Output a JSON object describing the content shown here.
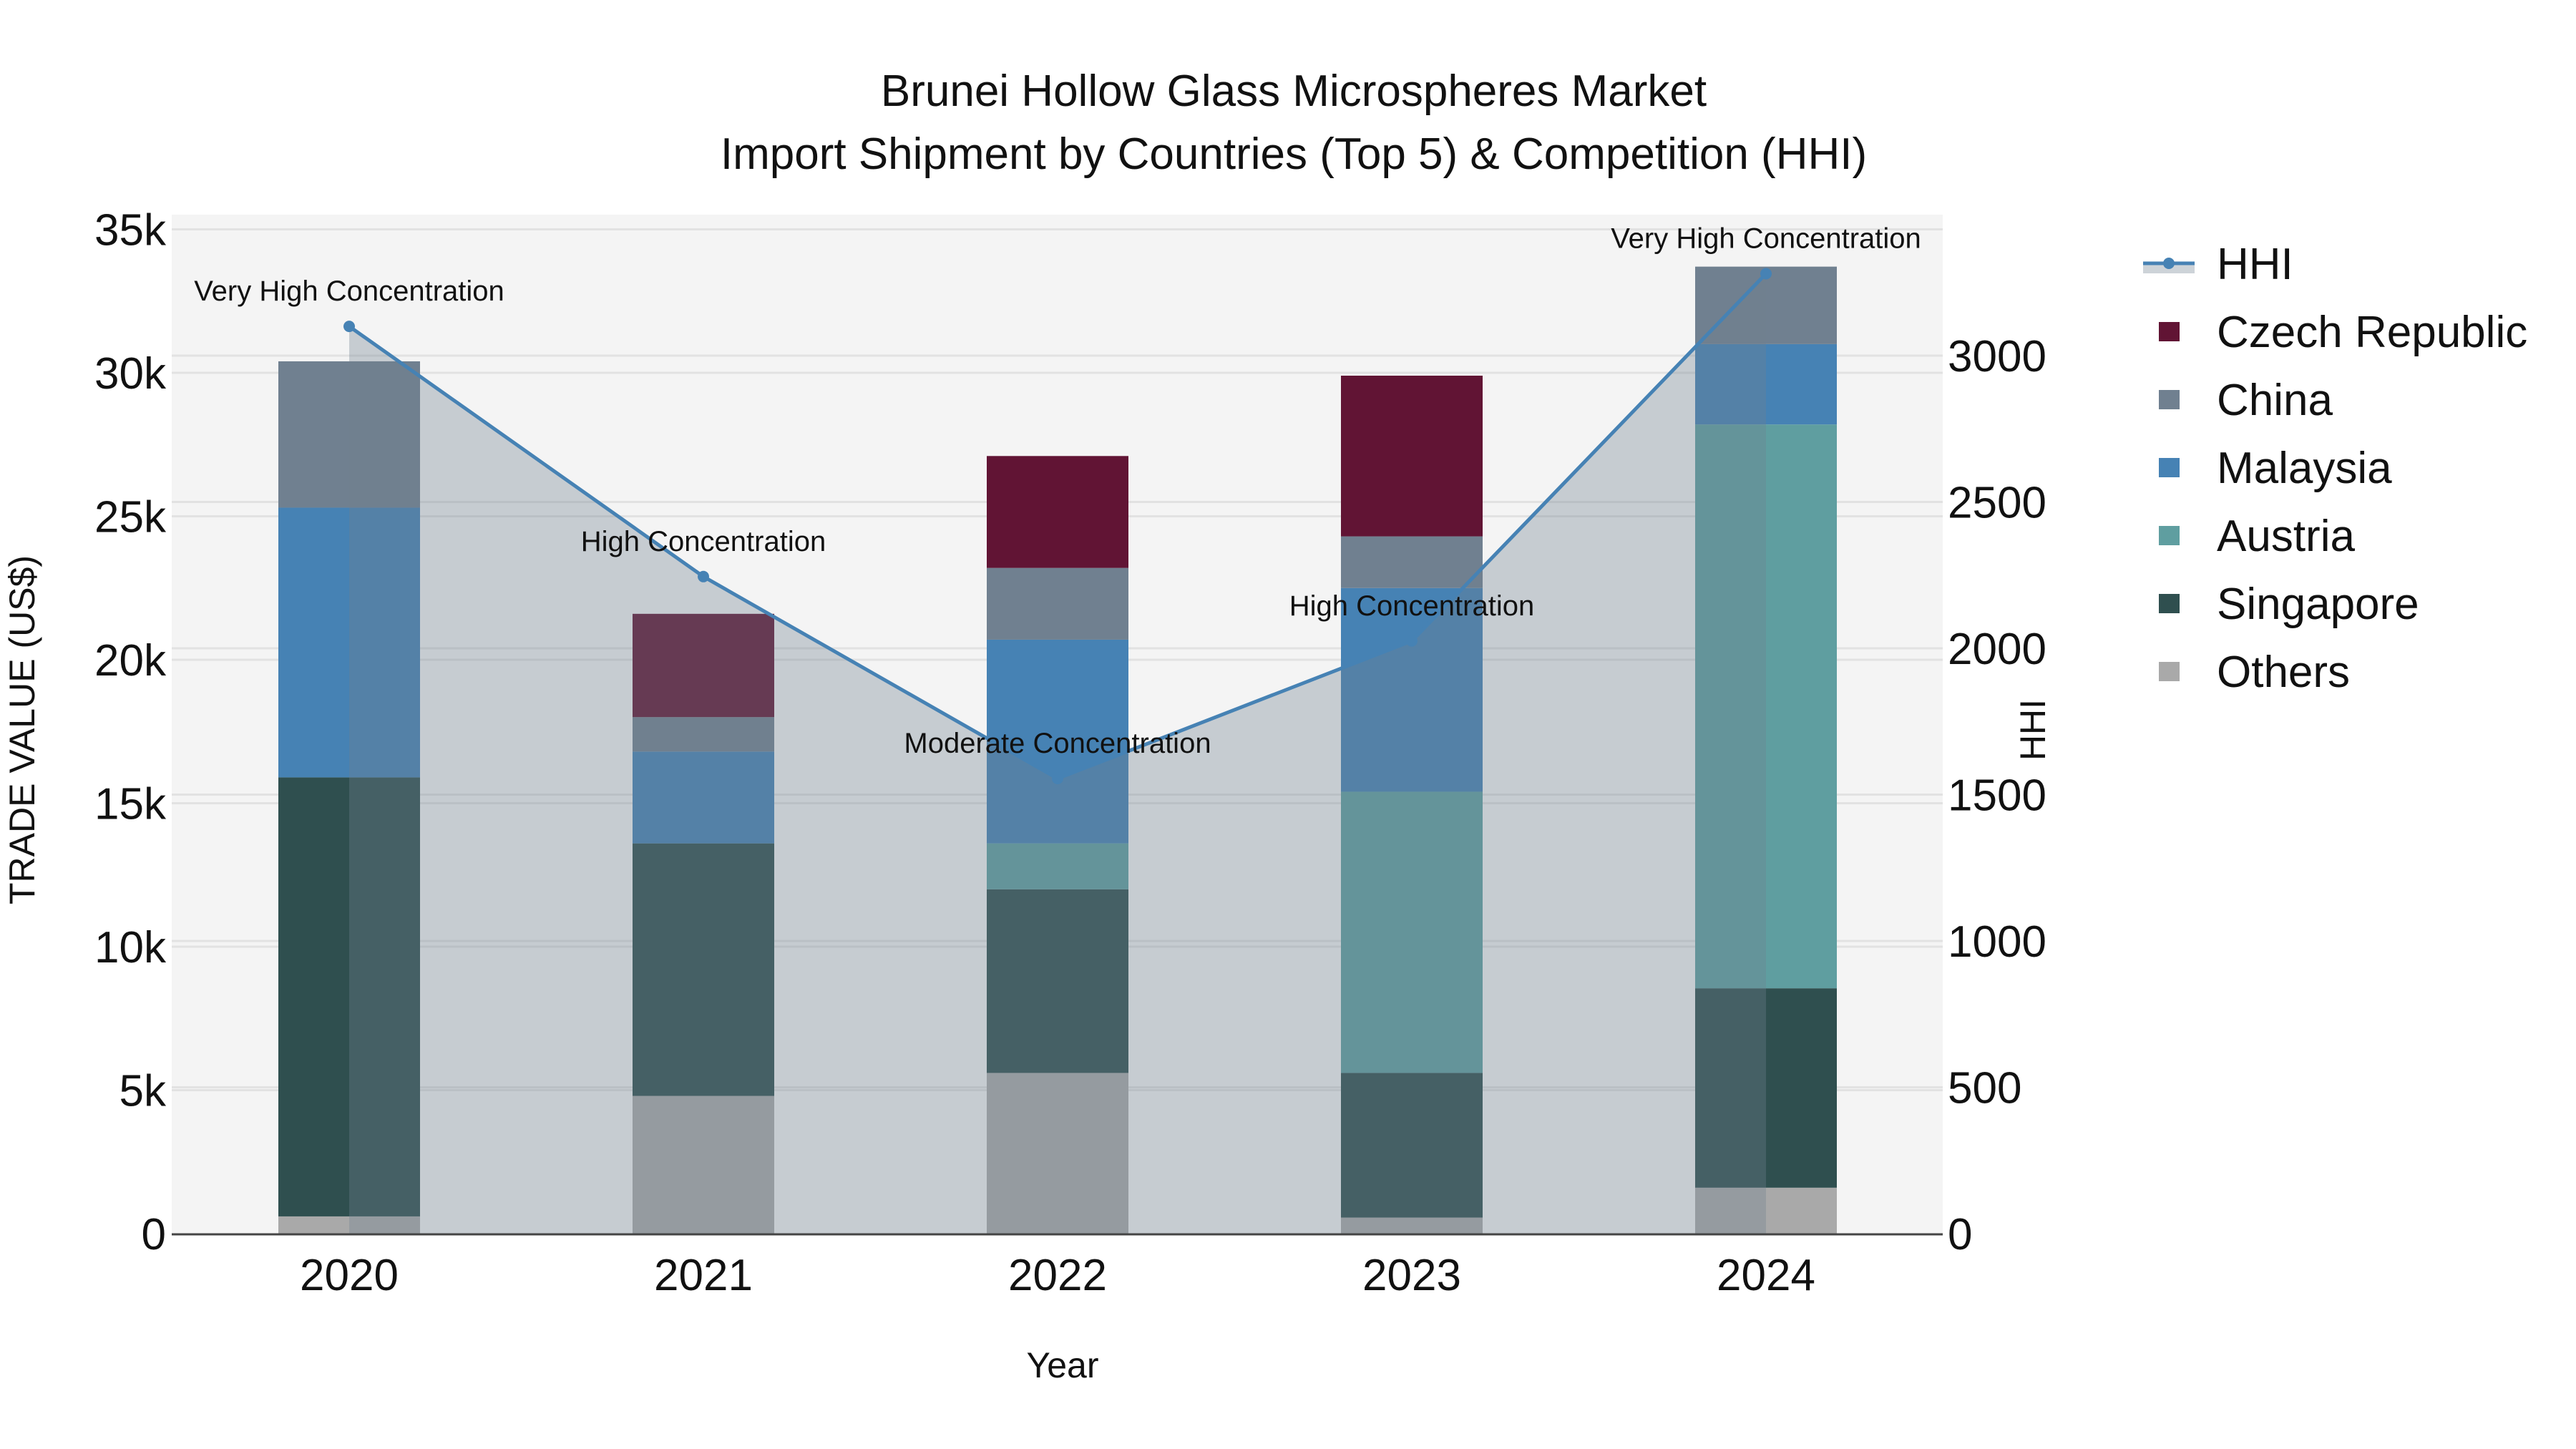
{
  "title": {
    "line1": "Brunei Hollow Glass Microspheres Market",
    "line2": "Import Shipment by Countries (Top 5) & Competition (HHI)"
  },
  "axes": {
    "x_title": "Year",
    "y_left_title": "TRADE VALUE (US$)",
    "y_right_title": "HHI",
    "y_left_ticks": [
      "0",
      "5k",
      "10k",
      "15k",
      "20k",
      "25k",
      "30k",
      "35k"
    ],
    "y_right_ticks": [
      "0",
      "500",
      "1000",
      "1500",
      "2000",
      "2500",
      "3000"
    ]
  },
  "legend": {
    "items": [
      {
        "label": "HHI",
        "type": "line",
        "color": "#4682B4"
      },
      {
        "label": "Czech Republic",
        "type": "box",
        "color": "#611434"
      },
      {
        "label": "China",
        "type": "box",
        "color": "#708090"
      },
      {
        "label": "Malaysia",
        "type": "box",
        "color": "#4682B4"
      },
      {
        "label": "Austria",
        "type": "box",
        "color": "#5F9EA0"
      },
      {
        "label": "Singapore",
        "type": "box",
        "color": "#2F4F4F"
      },
      {
        "label": "Others",
        "type": "box",
        "color": "#A9A9A9"
      }
    ]
  },
  "colors": {
    "plot_bg": "#F4F4F4",
    "grid": "#E2E2E2",
    "hhi_line": "#4682B4",
    "hhi_fill": "rgba(112,128,144,0.35)",
    "axis_line": "#444444"
  },
  "chart_data": {
    "type": "bar",
    "stacked": true,
    "title": "Brunei Hollow Glass Microspheres Market — Import Shipment by Countries (Top 5) & Competition (HHI)",
    "xlabel": "Year",
    "ylabel": "TRADE VALUE (US$)",
    "y2label": "HHI",
    "ylim": [
      0,
      35000
    ],
    "y2lim": [
      0,
      3430
    ],
    "grid": true,
    "legend_position": "right",
    "categories": [
      "2020",
      "2021",
      "2022",
      "2023",
      "2024"
    ],
    "series": [
      {
        "name": "Others",
        "color": "#A9A9A9",
        "values": [
          600,
          4800,
          5600,
          560,
          1600
        ]
      },
      {
        "name": "Singapore",
        "color": "#2F4F4F",
        "values": [
          15300,
          8800,
          6400,
          5040,
          6950
        ]
      },
      {
        "name": "Austria",
        "color": "#5F9EA0",
        "values": [
          0,
          0,
          1600,
          9800,
          19650
        ]
      },
      {
        "name": "Malaysia",
        "color": "#4682B4",
        "values": [
          9400,
          3200,
          7100,
          7100,
          2800
        ]
      },
      {
        "name": "China",
        "color": "#708090",
        "values": [
          5100,
          1200,
          2500,
          1800,
          2700
        ]
      },
      {
        "name": "Czech Republic",
        "color": "#611434",
        "values": [
          0,
          3600,
          3900,
          5600,
          0
        ]
      }
    ],
    "line_series": {
      "name": "HHI",
      "axis": "right",
      "color": "#4682B4",
      "fill": "tozeroy",
      "values": [
        3100,
        2245,
        1555,
        2025,
        3280
      ],
      "annotations": [
        "Very High Concentration",
        "High Concentration",
        "Moderate Concentration",
        "High Concentration",
        "Very High Concentration"
      ]
    }
  }
}
